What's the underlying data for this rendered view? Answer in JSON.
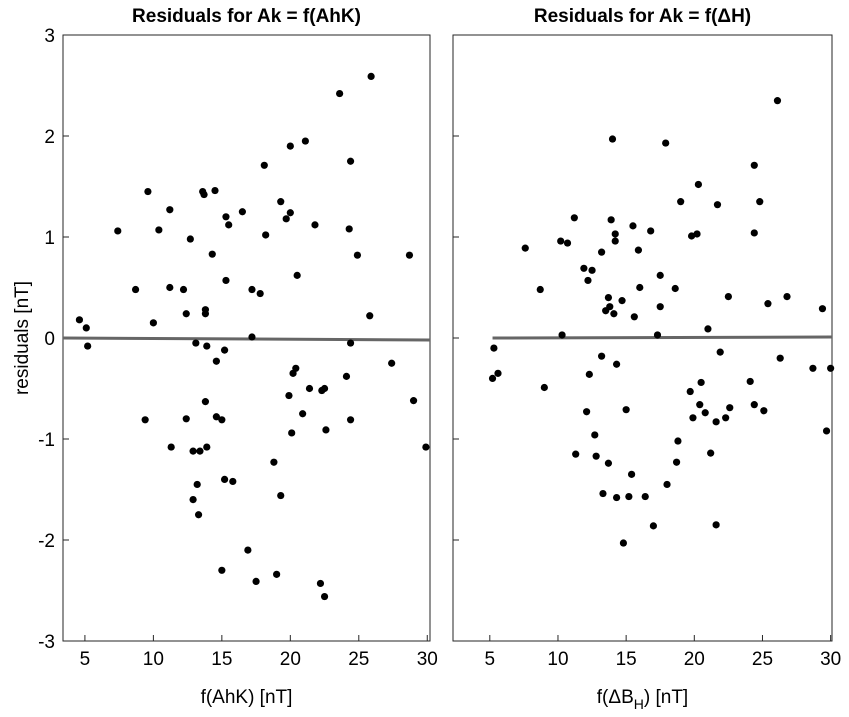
{
  "chart_data": [
    {
      "type": "scatter",
      "title": "Residuals for Ak = f(AhK)",
      "xlabel": [
        "f(AhK) [nT]"
      ],
      "ylabel": "residuals [nT]",
      "xlim": [
        3.4,
        30.2
      ],
      "ylim": [
        -3,
        3
      ],
      "xticks": [
        5,
        10,
        15,
        20,
        25,
        30
      ],
      "yticks": [
        -3,
        -2,
        -1,
        0,
        1,
        2,
        3
      ],
      "show_ytick_labels": true,
      "color": "#000000",
      "x": [
        4.6,
        5.1,
        5.2,
        7.4,
        8.7,
        9.6,
        10.0,
        10.4,
        9.4,
        11.2,
        11.2,
        11.3,
        12.2,
        12.4,
        12.4,
        12.7,
        12.9,
        12.9,
        13.1,
        13.2,
        13.3,
        13.4,
        13.6,
        13.7,
        13.8,
        13.8,
        13.8,
        13.9,
        13.9,
        14.3,
        14.5,
        14.6,
        14.6,
        15.0,
        15.0,
        15.2,
        15.2,
        15.3,
        15.3,
        15.5,
        15.8,
        16.5,
        16.9,
        17.2,
        17.2,
        17.5,
        17.8,
        18.1,
        18.2,
        18.8,
        19.0,
        19.3,
        19.3,
        19.7,
        19.9,
        20.0,
        20.0,
        20.1,
        20.2,
        20.4,
        20.5,
        20.9,
        21.1,
        21.4,
        21.8,
        22.2,
        22.3,
        22.5,
        22.5,
        22.6,
        23.6,
        24.1,
        24.3,
        24.4,
        24.4,
        24.4,
        24.9,
        25.8,
        25.9,
        27.4,
        28.7,
        29.0,
        29.9
      ],
      "values": [
        0.18,
        0.1,
        -0.08,
        1.06,
        0.48,
        1.45,
        0.15,
        1.07,
        -0.81,
        1.27,
        0.5,
        -1.08,
        0.48,
        0.24,
        -0.8,
        0.98,
        -1.12,
        -1.6,
        -0.05,
        -1.45,
        -1.75,
        -1.12,
        1.45,
        1.42,
        0.28,
        0.24,
        -0.63,
        -0.08,
        -1.08,
        0.83,
        1.46,
        -0.23,
        -0.78,
        -0.81,
        -2.3,
        -0.12,
        -1.4,
        0.57,
        1.2,
        1.12,
        -1.42,
        1.25,
        -2.1,
        0.01,
        0.48,
        -2.41,
        0.44,
        1.71,
        1.02,
        -1.23,
        -2.34,
        1.35,
        -1.56,
        1.18,
        -0.57,
        1.24,
        1.9,
        -0.94,
        -0.35,
        -0.3,
        0.62,
        -0.75,
        1.95,
        -0.5,
        1.12,
        -2.43,
        -0.52,
        -0.5,
        -2.56,
        -0.91,
        2.42,
        -0.38,
        1.08,
        1.75,
        -0.05,
        -0.81,
        0.82,
        0.22,
        2.59,
        -0.25,
        0.82,
        -0.62,
        -1.08
      ],
      "fit_color": "#666666",
      "fit_x": [
        3.4,
        30.2
      ],
      "fit_values": [
        0.0,
        -0.02
      ]
    },
    {
      "type": "scatter",
      "title": "Residuals for Ak = f(ΔH)",
      "xlabel": [
        "f(ΔB",
        "H",
        ") [nT]"
      ],
      "xlim": [
        2.3,
        30.1
      ],
      "ylim": [
        -3,
        3
      ],
      "xticks": [
        5,
        10,
        15,
        20,
        25,
        30
      ],
      "yticks": [
        -3,
        -2,
        -1,
        0,
        1,
        2,
        3
      ],
      "show_ytick_labels": false,
      "color": "#000000",
      "x": [
        5.2,
        5.3,
        5.6,
        7.6,
        8.7,
        9.0,
        10.2,
        10.3,
        10.7,
        11.2,
        11.3,
        11.9,
        12.1,
        12.2,
        12.3,
        12.5,
        12.7,
        12.8,
        13.2,
        13.2,
        13.3,
        13.5,
        13.7,
        13.7,
        13.8,
        13.9,
        14.0,
        14.1,
        14.2,
        14.2,
        14.3,
        14.3,
        14.7,
        14.8,
        15.0,
        15.2,
        15.4,
        15.5,
        15.6,
        15.9,
        16.0,
        16.4,
        16.8,
        17.0,
        17.3,
        17.5,
        17.5,
        17.9,
        18.0,
        18.6,
        18.7,
        18.8,
        19.0,
        19.7,
        19.8,
        19.9,
        20.2,
        20.3,
        20.4,
        20.5,
        20.8,
        21.0,
        21.2,
        21.6,
        21.6,
        21.7,
        21.9,
        22.3,
        22.5,
        22.6,
        24.1,
        24.4,
        24.4,
        24.4,
        24.8,
        25.1,
        25.4,
        26.1,
        26.3,
        26.8,
        28.7,
        29.4,
        29.7,
        30.0
      ],
      "values": [
        -0.4,
        -0.1,
        -0.35,
        0.89,
        0.48,
        -0.49,
        0.96,
        0.03,
        0.94,
        1.19,
        -1.15,
        0.69,
        -0.73,
        0.57,
        -0.36,
        0.67,
        -0.96,
        -1.17,
        0.85,
        -0.18,
        -1.54,
        0.27,
        0.4,
        -1.24,
        0.31,
        1.17,
        1.97,
        0.24,
        1.03,
        0.96,
        -0.26,
        -1.58,
        0.37,
        -2.03,
        -0.71,
        -1.57,
        -1.35,
        1.11,
        0.21,
        0.87,
        0.5,
        -1.57,
        1.06,
        -1.86,
        0.03,
        0.62,
        0.31,
        1.93,
        -1.45,
        0.49,
        -1.23,
        -1.02,
        1.35,
        -0.53,
        1.01,
        -0.79,
        1.03,
        1.52,
        -0.66,
        -0.44,
        -0.74,
        0.09,
        -1.14,
        -0.83,
        -1.85,
        1.32,
        -0.14,
        -0.79,
        0.41,
        -0.69,
        -0.43,
        1.71,
        1.04,
        -0.66,
        1.35,
        -0.72,
        0.34,
        2.35,
        -0.2,
        0.41,
        -0.3,
        0.29,
        -0.92,
        -0.3
      ],
      "fit_color": "#666666",
      "fit_x": [
        5.2,
        30.1
      ],
      "fit_values": [
        0.0,
        0.01
      ]
    }
  ]
}
